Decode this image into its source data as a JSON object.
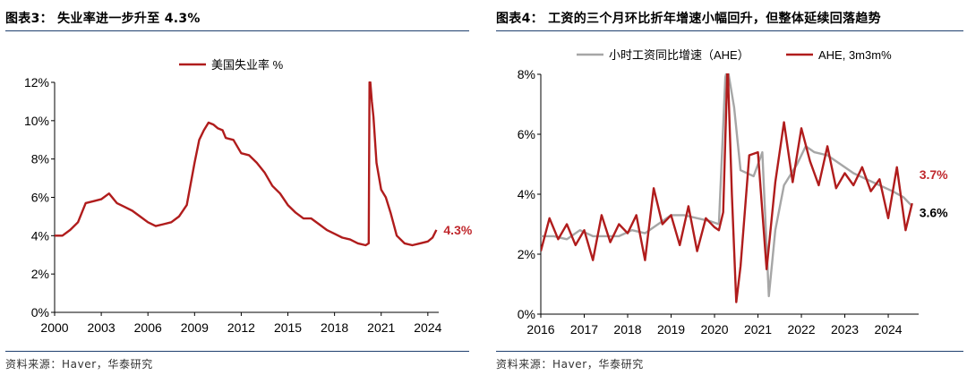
{
  "panels": {
    "left": {
      "title": "图表3：  失业率进一步升至 4.3%",
      "source": "资料来源：Haver，华泰研究"
    },
    "right": {
      "title": "图表4：  工资的三个月环比折年增速小幅回升，但整体延续回落趋势",
      "source": "资料来源：Haver，华泰研究"
    }
  },
  "chart_data": [
    {
      "type": "line",
      "title": "",
      "xlabel": "",
      "ylabel": "",
      "xlim": [
        2000,
        2024.7
      ],
      "ylim": [
        0,
        12
      ],
      "x_ticks": [
        2000,
        2003,
        2006,
        2009,
        2012,
        2015,
        2018,
        2021,
        2024
      ],
      "x_tick_labels": [
        "2000",
        "2003",
        "2006",
        "2009",
        "2012",
        "2015",
        "2018",
        "2021",
        "2024"
      ],
      "y_ticks": [
        0,
        2,
        4,
        6,
        8,
        10,
        12
      ],
      "y_tick_labels": [
        "0%",
        "2%",
        "4%",
        "6%",
        "8%",
        "10%",
        "12%"
      ],
      "legend_position": "top-center",
      "grid": false,
      "series": [
        {
          "name": "美国失业率 %",
          "color": "#b01c1c",
          "x": [
            2000,
            2000.5,
            2001,
            2001.5,
            2002,
            2002.5,
            2003,
            2003.5,
            2004,
            2004.5,
            2005,
            2005.5,
            2006,
            2006.5,
            2007,
            2007.5,
            2008,
            2008.5,
            2009,
            2009.3,
            2009.6,
            2009.9,
            2010.2,
            2010.5,
            2010.8,
            2011,
            2011.5,
            2012,
            2012.5,
            2013,
            2013.5,
            2014,
            2014.5,
            2015,
            2015.5,
            2016,
            2016.5,
            2017,
            2017.5,
            2018,
            2018.5,
            2019,
            2019.5,
            2020.0,
            2020.2,
            2020.25,
            2020.3,
            2020.4,
            2020.5,
            2020.7,
            2021,
            2021.3,
            2021.6,
            2022,
            2022.5,
            2023,
            2023.5,
            2024,
            2024.3,
            2024.55
          ],
          "y": [
            4.0,
            4.0,
            4.3,
            4.7,
            5.7,
            5.8,
            5.9,
            6.2,
            5.7,
            5.5,
            5.3,
            5.0,
            4.7,
            4.5,
            4.6,
            4.7,
            5.0,
            5.6,
            7.8,
            9.0,
            9.5,
            9.9,
            9.8,
            9.6,
            9.5,
            9.1,
            9.0,
            8.3,
            8.2,
            7.8,
            7.3,
            6.6,
            6.2,
            5.6,
            5.2,
            4.9,
            4.9,
            4.6,
            4.3,
            4.1,
            3.9,
            3.8,
            3.6,
            3.5,
            3.6,
            12.0,
            12.0,
            11.0,
            10.2,
            7.8,
            6.4,
            6.0,
            5.2,
            4.0,
            3.6,
            3.5,
            3.6,
            3.7,
            3.9,
            4.3
          ]
        }
      ],
      "annotations": [
        {
          "text": "4.3%",
          "x": 2024.55,
          "y": 4.3,
          "color": "#c0282d"
        }
      ]
    },
    {
      "type": "line",
      "title": "",
      "xlabel": "",
      "ylabel": "",
      "xlim": [
        2016,
        2024.7
      ],
      "ylim": [
        0,
        8
      ],
      "x_ticks": [
        2016,
        2017,
        2018,
        2019,
        2020,
        2021,
        2022,
        2023,
        2024
      ],
      "x_tick_labels": [
        "2016",
        "2017",
        "2018",
        "2019",
        "2020",
        "2021",
        "2022",
        "2023",
        "2024"
      ],
      "y_ticks": [
        0,
        2,
        4,
        6,
        8
      ],
      "y_tick_labels": [
        "0%",
        "2%",
        "4%",
        "6%",
        "8%"
      ],
      "legend_position": "top",
      "grid": false,
      "series": [
        {
          "name": "小时工资同比增速（AHE）",
          "color": "#a6a6a6",
          "x": [
            2016,
            2016.3,
            2016.6,
            2016.9,
            2017.2,
            2017.5,
            2017.8,
            2018.1,
            2018.4,
            2018.7,
            2019,
            2019.3,
            2019.6,
            2019.9,
            2020.1,
            2020.25,
            2020.3,
            2020.45,
            2020.6,
            2020.9,
            2021.1,
            2021.25,
            2021.4,
            2021.6,
            2021.9,
            2022.1,
            2022.3,
            2022.6,
            2022.9,
            2023.2,
            2023.5,
            2023.8,
            2024.1,
            2024.35,
            2024.55
          ],
          "y": [
            2.6,
            2.6,
            2.5,
            2.8,
            2.6,
            2.6,
            2.6,
            2.8,
            2.7,
            3.0,
            3.3,
            3.3,
            3.2,
            3.1,
            3.0,
            7.9,
            8.2,
            6.9,
            4.8,
            4.6,
            5.4,
            0.6,
            2.8,
            4.3,
            5.0,
            5.6,
            5.4,
            5.3,
            5.0,
            4.7,
            4.5,
            4.3,
            4.1,
            3.9,
            3.6
          ]
        },
        {
          "name": "AHE, 3m3m%",
          "color": "#b01c1c",
          "x": [
            2016,
            2016.2,
            2016.4,
            2016.6,
            2016.8,
            2017,
            2017.2,
            2017.4,
            2017.6,
            2017.8,
            2018,
            2018.2,
            2018.4,
            2018.6,
            2018.8,
            2019,
            2019.2,
            2019.4,
            2019.6,
            2019.8,
            2020,
            2020.1,
            2020.2,
            2020.3,
            2020.4,
            2020.5,
            2020.6,
            2020.8,
            2021,
            2021.2,
            2021.4,
            2021.6,
            2021.8,
            2022,
            2022.2,
            2022.4,
            2022.6,
            2022.8,
            2023,
            2023.2,
            2023.4,
            2023.6,
            2023.8,
            2024,
            2024.2,
            2024.4,
            2024.55
          ],
          "y": [
            2.1,
            3.2,
            2.5,
            3.0,
            2.3,
            2.8,
            1.8,
            3.3,
            2.4,
            3.0,
            2.7,
            3.3,
            1.8,
            4.2,
            3.0,
            3.3,
            2.3,
            3.6,
            2.1,
            3.2,
            2.9,
            2.8,
            3.4,
            8.4,
            4.0,
            0.4,
            1.6,
            5.3,
            5.4,
            1.5,
            4.4,
            6.4,
            4.4,
            6.2,
            5.1,
            4.3,
            5.6,
            4.2,
            4.7,
            4.3,
            4.9,
            4.1,
            4.5,
            3.2,
            4.9,
            2.8,
            3.7
          ]
        }
      ],
      "annotations": [
        {
          "text": "3.7%",
          "x": 2024.55,
          "y": 3.7,
          "color": "#c0282d"
        },
        {
          "text": "3.6%",
          "x": 2024.55,
          "y": 3.6,
          "color": "#000000"
        }
      ]
    }
  ]
}
